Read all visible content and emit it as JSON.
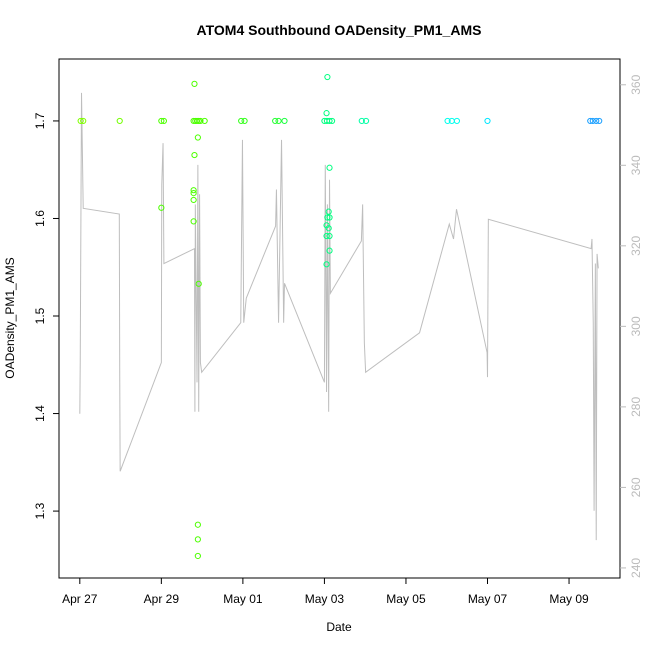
{
  "chart_data": {
    "type": "scatter",
    "title": "ATOM4 Southbound OADensity_PM1_AMS",
    "x_label": "Date",
    "y_label": "OADensity_PM1_AMS",
    "xlim": [
      "04-26T11:45",
      "05-10T06:00"
    ],
    "xticks": [
      {
        "value": "04-27T00:00",
        "label": "Apr 27"
      },
      {
        "value": "04-29T00:00",
        "label": "Apr 29"
      },
      {
        "value": "05-01T00:00",
        "label": "May 01"
      },
      {
        "value": "05-03T00:00",
        "label": "May 03"
      },
      {
        "value": "05-05T00:00",
        "label": "May 05"
      },
      {
        "value": "05-07T00:00",
        "label": "May 07"
      },
      {
        "value": "05-09T00:00",
        "label": "May 09"
      }
    ],
    "ylim": [
      1.2314,
      1.7635
    ],
    "yticks": [
      1.3,
      1.4,
      1.5,
      1.6,
      1.7
    ],
    "y2lim": [
      237.5,
      366.4
    ],
    "y2ticks": [
      240,
      260,
      280,
      300,
      320,
      340,
      360
    ],
    "points": {
      "x": [
        "04-27T00:30",
        "04-27T02:00",
        "04-27T23:30",
        "04-29T00:00",
        "04-29T01:30",
        "04-29T19:00",
        "04-29T20:00",
        "04-29T21:00",
        "04-29T22:00",
        "04-29T23:00",
        "04-30T01:30",
        "04-30T23:00",
        "05-01T01:00",
        "05-01T19:00",
        "05-01T21:00",
        "05-02T00:30",
        "05-03T00:00",
        "05-03T01:30",
        "05-03T03:00",
        "05-03T04:30",
        "05-03T22:00",
        "05-04T00:30",
        "05-06T00:30",
        "05-06T03:00",
        "05-06T06:00",
        "05-07T00:00",
        "05-09T12:30",
        "05-09T14:00",
        "05-09T16:00",
        "05-09T17:45",
        "04-29T19:30",
        "04-29T21:30",
        "04-29T19:30",
        "04-29T00:00",
        "04-29T19:00",
        "04-29T19:00",
        "04-29T19:00",
        "04-29T19:00",
        "04-29T22:00",
        "04-29T21:30",
        "04-29T21:30",
        "04-29T21:30",
        "05-03T01:45",
        "05-03T01:15",
        "05-03T03:00",
        "05-03T02:30",
        "05-03T01:45",
        "05-03T03:00",
        "05-03T01:15",
        "05-03T02:30",
        "05-03T01:15",
        "05-03T03:00",
        "05-03T03:00",
        "05-03T01:15"
      ],
      "values": [
        1.7,
        1.7,
        1.7,
        1.7,
        1.7,
        1.7,
        1.7,
        1.7,
        1.7,
        1.7,
        1.7,
        1.7,
        1.7,
        1.7,
        1.7,
        1.7,
        1.7,
        1.7,
        1.7,
        1.7,
        1.7,
        1.7,
        1.7,
        1.7,
        1.7,
        1.7,
        1.7,
        1.7,
        1.7,
        1.7,
        1.738,
        1.683,
        1.665,
        1.611,
        1.629,
        1.626,
        1.619,
        1.597,
        1.533,
        1.286,
        1.271,
        1.254,
        1.745,
        1.708,
        1.652,
        1.607,
        1.601,
        1.601,
        1.593,
        1.59,
        1.582,
        1.582,
        1.567,
        1.553
      ],
      "colors": [
        "#80ff00",
        "#80ff00",
        "#73ff00",
        "#4dff00",
        "#4dff00",
        "#4dff00",
        "#4dff00",
        "#4dff00",
        "#4dff00",
        "#4dff00",
        "#4dff00",
        "#33ff1a",
        "#33ff1a",
        "#26ff33",
        "#26ff33",
        "#1aff40",
        "#00ff80",
        "#00ff80",
        "#00ff80",
        "#00ff80",
        "#00ffa6",
        "#00ffa6",
        "#00ffee",
        "#00ffee",
        "#00ffee",
        "#00e6ff",
        "#1a9fff",
        "#1a9fff",
        "#1a9fff",
        "#1a9fff",
        "#4dff00",
        "#4dff00",
        "#4dff00",
        "#4dff00",
        "#4dff00",
        "#4dff00",
        "#4dff00",
        "#4dff00",
        "#4dff00",
        "#4dff00",
        "#4dff00",
        "#4dff00",
        "#00ff80",
        "#00ff80",
        "#00ff80",
        "#00ff80",
        "#00ff80",
        "#00ff80",
        "#00ff80",
        "#00ff80",
        "#00ff80",
        "#00ff80",
        "#00ff80",
        "#00ff80"
      ]
    },
    "line": {
      "axis": "y2",
      "color": "#bebebe",
      "x": [
        "04-27T00:00",
        "04-27T00:15",
        "04-27T01:00",
        "04-27T02:00",
        "04-27T23:15",
        "04-27T23:30",
        "04-27T23:45",
        "04-29T00:00",
        "04-29T00:15",
        "04-29T01:00",
        "04-29T01:30",
        "04-29T19:30",
        "04-29T19:45",
        "04-29T20:00",
        "04-29T21:00",
        "04-29T21:30",
        "04-29T22:00",
        "04-29T22:30",
        "04-29T23:00",
        "04-29T23:45",
        "04-30T22:45",
        "04-30T23:45",
        "05-01T00:30",
        "05-01T02:00",
        "05-01T19:15",
        "05-01T19:45",
        "05-01T21:00",
        "05-01T22:45",
        "05-02T00:00",
        "05-02T00:30",
        "05-03T00:00",
        "05-03T00:30",
        "05-03T01:15",
        "05-03T01:45",
        "05-03T02:30",
        "05-03T03:00",
        "05-03T03:30",
        "05-03T21:45",
        "05-03T22:30",
        "05-03T23:00",
        "05-03T23:30",
        "05-04T00:15",
        "05-05T08:00",
        "05-06T01:30",
        "05-06T04:00",
        "05-06T05:45",
        "05-06T23:45",
        "05-07T00:00",
        "05-07T00:30",
        "05-09T13:00",
        "05-09T13:30",
        "05-09T14:15",
        "05-09T14:45",
        "05-09T15:30",
        "05-09T16:00",
        "05-09T16:30",
        "05-09T17:15"
      ],
      "values": [
        278.3,
        291,
        358,
        329.3,
        327.9,
        288.3,
        264,
        291,
        335.2,
        345.5,
        315.6,
        319.3,
        278.8,
        330.3,
        286.1,
        340.1,
        278.8,
        332.8,
        291,
        288.6,
        300.9,
        346.3,
        300.9,
        307,
        324.9,
        334,
        300.9,
        346.3,
        300.9,
        310.7,
        286.1,
        340.1,
        283.7,
        330.3,
        278.8,
        336.4,
        308.2,
        321.2,
        330.3,
        313.1,
        296,
        288.6,
        298.4,
        325.4,
        321.7,
        329.1,
        293.5,
        287.4,
        326.6,
        319.3,
        321.7,
        300.9,
        254.2,
        315.6,
        246.9,
        318,
        314.4
      ]
    }
  }
}
